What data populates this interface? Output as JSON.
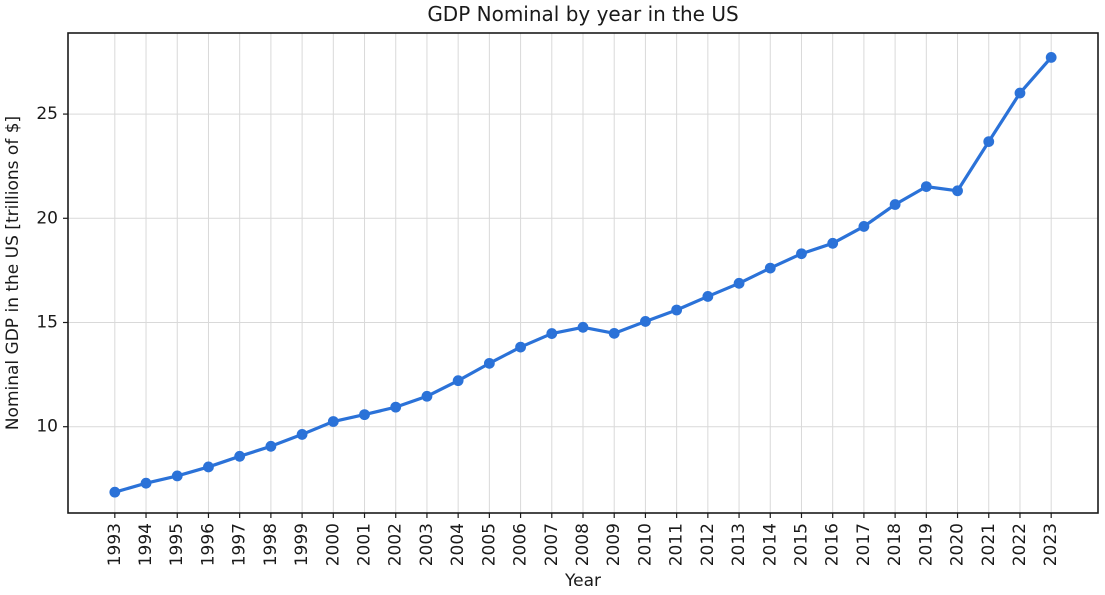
{
  "chart_data": {
    "type": "line",
    "title": "GDP Nominal by year in the US",
    "xlabel": "Year",
    "ylabel": "Nominal GDP in the US [trillions of $]",
    "x": [
      1993,
      1994,
      1995,
      1996,
      1997,
      1998,
      1999,
      2000,
      2001,
      2002,
      2003,
      2004,
      2005,
      2006,
      2007,
      2008,
      2009,
      2010,
      2011,
      2012,
      2013,
      2014,
      2015,
      2016,
      2017,
      2018,
      2019,
      2020,
      2021,
      2022,
      2023
    ],
    "y": [
      6.86,
      7.29,
      7.64,
      8.07,
      8.58,
      9.06,
      9.63,
      10.25,
      10.58,
      10.94,
      11.46,
      12.21,
      13.04,
      13.82,
      14.47,
      14.77,
      14.48,
      15.05,
      15.6,
      16.25,
      16.88,
      17.61,
      18.3,
      18.8,
      19.61,
      20.66,
      21.52,
      21.32,
      23.68,
      26.01,
      27.72
    ],
    "xtick_labels": [
      "1993",
      "1994",
      "1995",
      "1996",
      "1997",
      "1998",
      "1999",
      "2000",
      "2001",
      "2002",
      "2003",
      "2004",
      "2005",
      "2006",
      "2007",
      "2008",
      "2009",
      "2010",
      "2011",
      "2012",
      "2013",
      "2014",
      "2015",
      "2016",
      "2017",
      "2018",
      "2019",
      "2020",
      "2021",
      "2022",
      "2023"
    ],
    "yticks": [
      10,
      15,
      20,
      25
    ],
    "xlim": [
      1991.5,
      2024.5
    ],
    "ylim": [
      5.86,
      28.89
    ],
    "grid": true,
    "legend": "none",
    "line_color": "#2b72d8",
    "marker": "circle",
    "grid_color": "#d9d9d9",
    "axis_color": "#1a1a1a",
    "background_color": "#ffffff"
  }
}
